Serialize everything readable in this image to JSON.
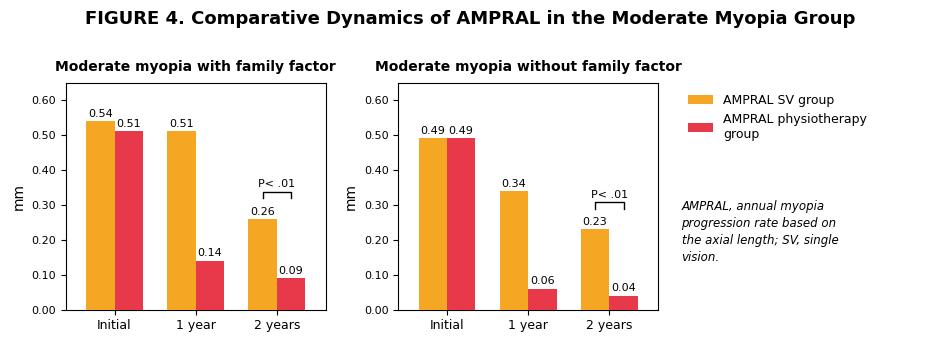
{
  "title": "FIGURE 4. Comparative Dynamics of AMPRAL in the Moderate Myopia Group",
  "legend": "upper left",
  "footnote": "AMPRAL, annual myopia\nprogression rate based on\nthe axial length; SV, single\nvision.",
  "chart_data": [
    {
      "type": "bar",
      "title": "Moderate myopia with family factor",
      "categories": [
        "Initial",
        "1 year",
        "2 years"
      ],
      "series": [
        {
          "name": "AMPRAL SV group",
          "color": "#f5a623",
          "values": [
            0.54,
            0.51,
            0.26
          ]
        },
        {
          "name": "AMPRAL physiotherapy\ngroup",
          "color": "#e8394a",
          "values": [
            0.51,
            0.14,
            0.09
          ]
        }
      ],
      "ylabel": "mm",
      "ylim": [
        0,
        0.65
      ],
      "yticks": [
        {
          "value": 0,
          "label": "0.00"
        },
        {
          "value": 0.1,
          "label": "0.10"
        },
        {
          "value": 0.2,
          "label": "0.20"
        },
        {
          "value": 0.3,
          "label": "0.30"
        },
        {
          "value": 0.4,
          "label": "0.40"
        },
        {
          "value": 0.5,
          "label": "0.50"
        },
        {
          "value": 0.6,
          "label": "0.60"
        }
      ],
      "data_labels": true,
      "annotations": [
        {
          "text": "P< .01",
          "category": "2 years"
        }
      ]
    },
    {
      "type": "bar",
      "title": "Moderate myopia without family factor",
      "categories": [
        "Initial",
        "1 year",
        "2 years"
      ],
      "series": [
        {
          "name": "AMPRAL SV group",
          "color": "#f5a623",
          "values": [
            0.49,
            0.34,
            0.23
          ]
        },
        {
          "name": "AMPRAL physiotherapy\ngroup",
          "color": "#e8394a",
          "values": [
            0.49,
            0.06,
            0.04
          ]
        }
      ],
      "ylabel": "mm",
      "ylim": [
        0,
        0.65
      ],
      "yticks": [
        {
          "value": 0,
          "label": "0.00"
        },
        {
          "value": 0.1,
          "label": "0.10"
        },
        {
          "value": 0.2,
          "label": "0.20"
        },
        {
          "value": 0.3,
          "label": "0.30"
        },
        {
          "value": 0.4,
          "label": "0.40"
        },
        {
          "value": 0.5,
          "label": "0.50"
        },
        {
          "value": 0.6,
          "label": "0.60"
        }
      ],
      "data_labels": true,
      "annotations": [
        {
          "text": "P< .01",
          "category": "2 years"
        }
      ]
    }
  ]
}
